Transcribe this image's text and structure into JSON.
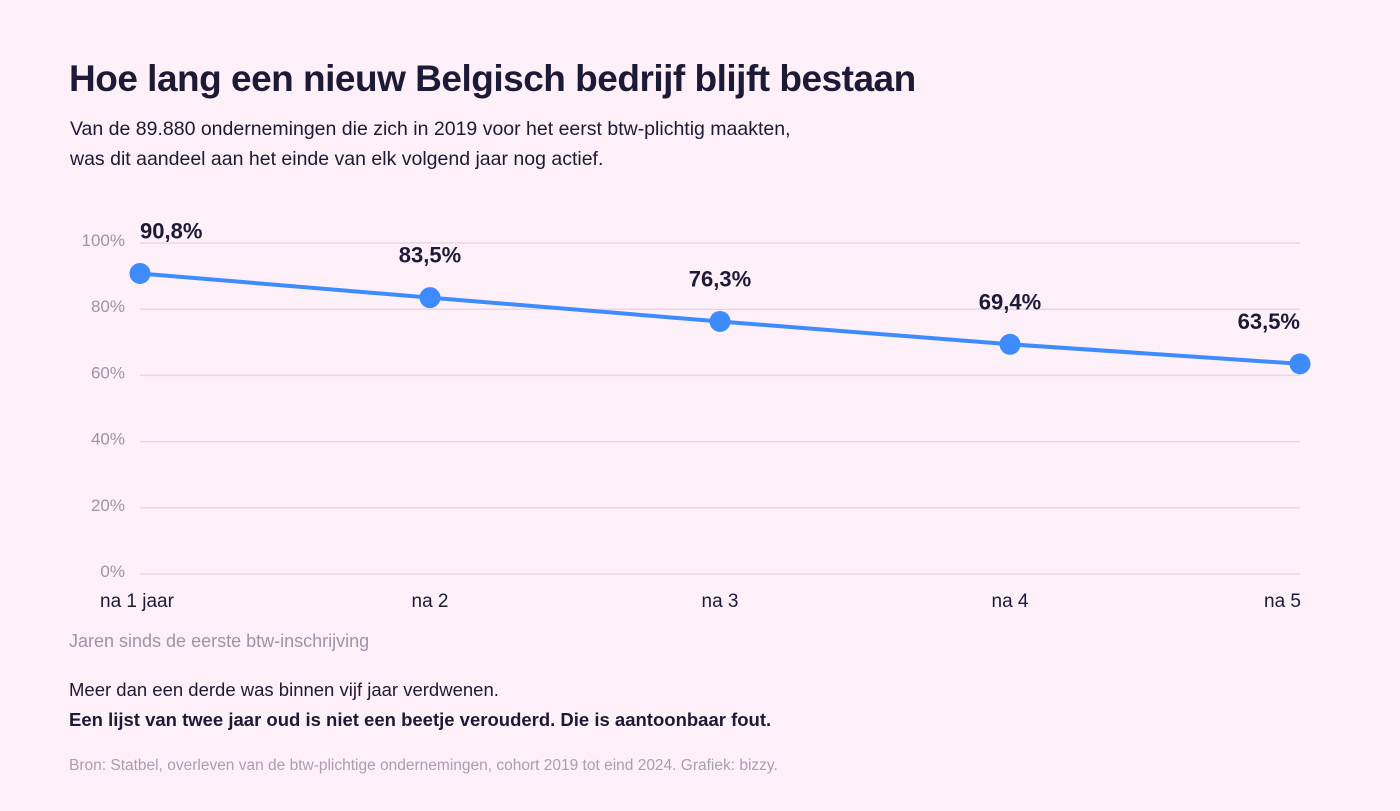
{
  "header": {
    "title": "Hoe lang een nieuw Belgisch bedrijf blijft bestaan",
    "subtitle_line1": "Van de 89.880 ondernemingen die zich in 2019 voor het eerst btw-plichtig maakten,",
    "subtitle_line2": "was dit aandeel aan het einde van elk volgend jaar nog actief."
  },
  "chart_data": {
    "type": "line",
    "categories": [
      "na 1 jaar",
      "na 2",
      "na 3",
      "na 4",
      "na 5"
    ],
    "series": [
      {
        "values": [
          90.8,
          83.5,
          76.3,
          69.4,
          63.5
        ],
        "data_labels": [
          "90,8%",
          "83,5%",
          "76,3%",
          "69,4%",
          "63,5%"
        ],
        "color": "#3d8bfd"
      }
    ],
    "ylim": [
      0,
      100
    ],
    "yticks": [
      0,
      20,
      40,
      60,
      80,
      100
    ],
    "ytick_labels": [
      "0%",
      "20%",
      "40%",
      "60%",
      "80%",
      "100%"
    ],
    "xlabel": "Jaren sinds de eerste btw-inschrijving",
    "ylabel": "",
    "grid": true
  },
  "footer": {
    "note_line1": "Meer dan een derde was binnen vijf jaar verdwenen.",
    "note_line2": "Een lijst van twee jaar oud is niet een beetje verouderd. Die is aantoonbaar fout.",
    "source": "Bron: Statbel, overleven van de btw-plichtige ondernemingen, cohort 2019 tot eind 2024. Grafiek: bizzy."
  },
  "colors": {
    "background": "#fdf0f9",
    "line": "#3d8bfd",
    "text": "#1d1a35",
    "muted": "#9c94a8",
    "grid": "#ead7e4"
  }
}
